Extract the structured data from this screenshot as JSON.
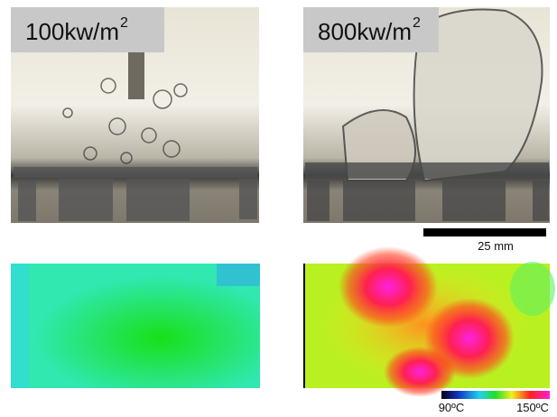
{
  "panels": [
    {
      "label": "100kw/m",
      "label_sup": "2"
    },
    {
      "label": "800kw/m",
      "label_sup": "2"
    }
  ],
  "scale_bar": {
    "label": "25 mm"
  },
  "colorbar": {
    "min_label": "90ºC",
    "max_label": "150ºC"
  }
}
